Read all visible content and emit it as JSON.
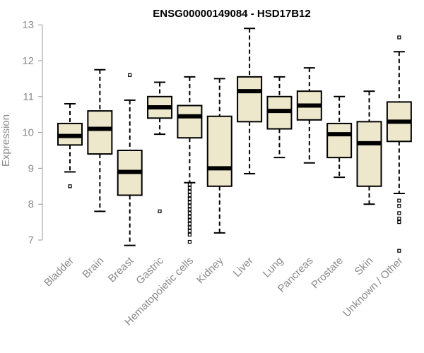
{
  "chart_data": {
    "type": "boxplot",
    "title": "ENSG00000149084 - HSD17B12",
    "ylabel": "Expression",
    "xlabel": "",
    "ylim": [
      6.8,
      13.0
    ],
    "yticks": [
      7,
      8,
      9,
      10,
      11,
      12,
      13
    ],
    "grid": false,
    "box_fill": "#ede7cc",
    "categories": [
      "Bladder",
      "Brain",
      "Breast",
      "Gastric",
      "Hematopoietic cells",
      "Kidney",
      "Liver",
      "Lung",
      "Pancreas",
      "Prostate",
      "Skin",
      "Unknown / Other"
    ],
    "boxes": [
      {
        "low": 8.9,
        "q1": 9.65,
        "median": 9.9,
        "q3": 10.25,
        "high": 10.8,
        "outliers": [
          8.5
        ]
      },
      {
        "low": 7.8,
        "q1": 9.4,
        "median": 10.1,
        "q3": 10.6,
        "high": 11.75,
        "outliers": []
      },
      {
        "low": 6.85,
        "q1": 8.25,
        "median": 8.9,
        "q3": 9.5,
        "high": 10.9,
        "outliers": [
          11.6
        ]
      },
      {
        "low": 9.95,
        "q1": 10.4,
        "median": 10.7,
        "q3": 11.0,
        "high": 11.4,
        "outliers": [
          7.8
        ]
      },
      {
        "low": 8.6,
        "q1": 9.85,
        "median": 10.45,
        "q3": 10.75,
        "high": 11.55,
        "outliers": [
          8.55,
          8.45,
          8.35,
          8.25,
          8.15,
          8.05,
          7.95,
          7.85,
          7.75,
          7.65,
          7.55,
          7.45,
          7.35,
          7.25,
          7.15,
          6.95
        ]
      },
      {
        "low": 7.2,
        "q1": 8.5,
        "median": 9.0,
        "q3": 10.45,
        "high": 11.5,
        "outliers": []
      },
      {
        "low": 8.85,
        "q1": 10.3,
        "median": 11.15,
        "q3": 11.55,
        "high": 12.9,
        "outliers": []
      },
      {
        "low": 9.3,
        "q1": 10.1,
        "median": 10.6,
        "q3": 11.0,
        "high": 11.55,
        "outliers": []
      },
      {
        "low": 9.15,
        "q1": 10.35,
        "median": 10.75,
        "q3": 11.15,
        "high": 11.8,
        "outliers": []
      },
      {
        "low": 8.75,
        "q1": 9.3,
        "median": 9.95,
        "q3": 10.25,
        "high": 11.0,
        "outliers": []
      },
      {
        "low": 8.0,
        "q1": 8.5,
        "median": 9.7,
        "q3": 10.3,
        "high": 11.15,
        "outliers": []
      },
      {
        "low": 8.3,
        "q1": 9.75,
        "median": 10.3,
        "q3": 10.85,
        "high": 12.25,
        "outliers": [
          12.65,
          8.1,
          7.95,
          7.75,
          7.6,
          7.5,
          6.7
        ]
      }
    ]
  }
}
